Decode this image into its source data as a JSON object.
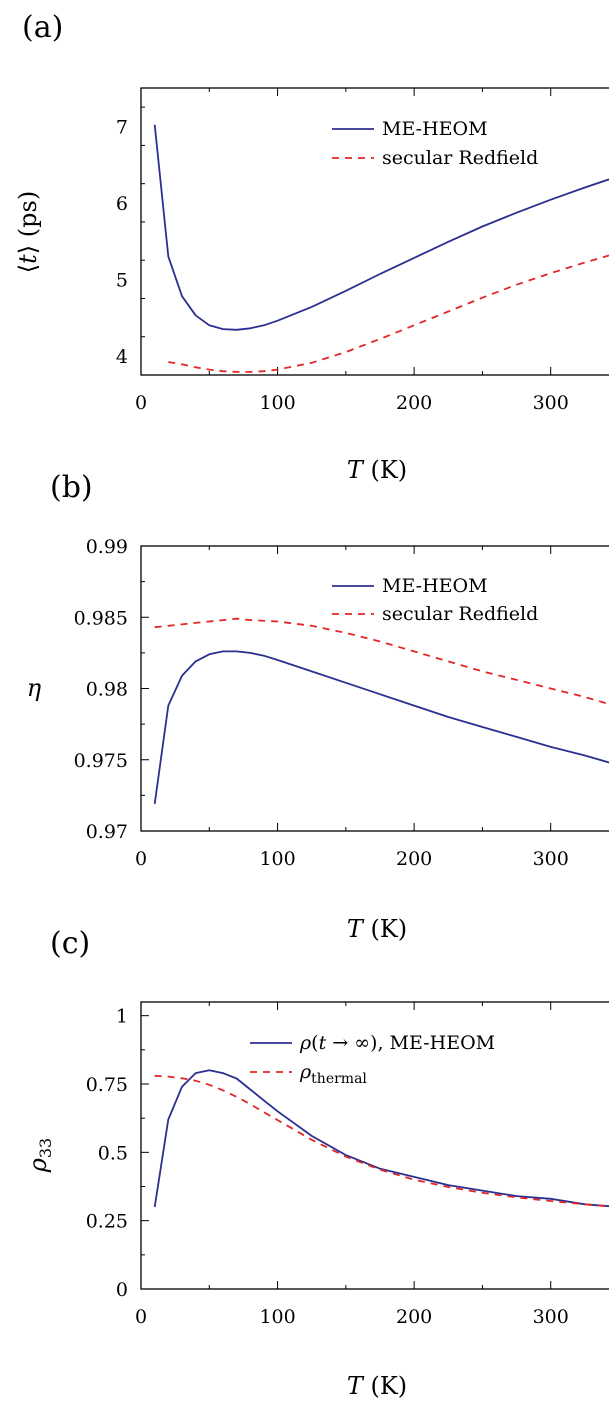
{
  "colors": {
    "heom": "#2b2f8f",
    "redfield": "#e32626"
  },
  "chart_data": [
    {
      "type": "line",
      "panel_label": "(a)",
      "xlabel": "T (K)",
      "ylabel": "⟨t⟩ (ps)",
      "xlim": [
        0,
        350
      ],
      "ylim": [
        3.75,
        7.5
      ],
      "xticks": [
        0,
        100,
        200,
        300
      ],
      "xtick_labels": [
        "0",
        "100",
        "200",
        "300"
      ],
      "yticks": [
        4,
        5,
        6,
        7
      ],
      "ytick_labels": [
        "4",
        "5",
        "6",
        "7"
      ],
      "legend_position": "top-right",
      "series": [
        {
          "name": "ME-HEOM",
          "style": "solid",
          "x": [
            10,
            20,
            30,
            40,
            50,
            60,
            70,
            80,
            90,
            100,
            125,
            150,
            175,
            200,
            225,
            250,
            275,
            300,
            325,
            350
          ],
          "y": [
            7.02,
            5.3,
            4.78,
            4.53,
            4.4,
            4.35,
            4.34,
            4.36,
            4.4,
            4.46,
            4.64,
            4.85,
            5.07,
            5.28,
            5.49,
            5.69,
            5.87,
            6.04,
            6.2,
            6.35
          ]
        },
        {
          "name": "secular Redfield",
          "style": "dashed",
          "x": [
            20,
            30,
            40,
            50,
            60,
            70,
            80,
            90,
            100,
            125,
            150,
            175,
            200,
            225,
            250,
            275,
            300,
            325,
            350
          ],
          "y": [
            3.92,
            3.89,
            3.85,
            3.82,
            3.8,
            3.79,
            3.79,
            3.8,
            3.82,
            3.91,
            4.05,
            4.22,
            4.4,
            4.58,
            4.76,
            4.93,
            5.08,
            5.22,
            5.35
          ]
        }
      ]
    },
    {
      "type": "line",
      "panel_label": "(b)",
      "xlabel": "T (K)",
      "ylabel": "η",
      "xlim": [
        0,
        350
      ],
      "ylim": [
        0.97,
        0.99
      ],
      "xticks": [
        0,
        100,
        200,
        300
      ],
      "xtick_labels": [
        "0",
        "100",
        "200",
        "300"
      ],
      "yticks": [
        0.97,
        0.975,
        0.98,
        0.985,
        0.99
      ],
      "ytick_labels": [
        "0.97",
        "0.975",
        "0.98",
        "0.985",
        "0.99"
      ],
      "legend_position": "top-right",
      "series": [
        {
          "name": "ME-HEOM",
          "style": "solid",
          "x": [
            10,
            20,
            30,
            40,
            50,
            60,
            70,
            80,
            90,
            100,
            125,
            150,
            175,
            200,
            225,
            250,
            275,
            300,
            325,
            350
          ],
          "y": [
            0.9719,
            0.9788,
            0.9809,
            0.9819,
            0.9824,
            0.9826,
            0.9826,
            0.9825,
            0.9823,
            0.982,
            0.9812,
            0.9804,
            0.9796,
            0.9788,
            0.978,
            0.9773,
            0.9766,
            0.9759,
            0.9753,
            0.9746
          ]
        },
        {
          "name": "secular Redfield",
          "style": "dashed",
          "x": [
            10,
            20,
            40,
            60,
            70,
            80,
            100,
            125,
            150,
            175,
            200,
            225,
            250,
            275,
            300,
            325,
            350
          ],
          "y": [
            0.9843,
            0.9844,
            0.9846,
            0.9848,
            0.9849,
            0.9848,
            0.9847,
            0.9844,
            0.9839,
            0.9833,
            0.9826,
            0.9819,
            0.9812,
            0.9806,
            0.98,
            0.9794,
            0.9787
          ]
        }
      ]
    },
    {
      "type": "line",
      "panel_label": "(c)",
      "xlabel": "T (K)",
      "ylabel": "ρ33",
      "xlim": [
        0,
        350
      ],
      "ylim": [
        0,
        1.05
      ],
      "xticks": [
        0,
        100,
        200,
        300
      ],
      "xtick_labels": [
        "0",
        "100",
        "200",
        "300"
      ],
      "yticks": [
        0,
        0.25,
        0.5,
        0.75,
        1
      ],
      "ytick_labels": [
        "0",
        "0.25",
        "0.5",
        "0.75",
        "1"
      ],
      "legend_position": "top-right",
      "series": [
        {
          "name": "ρ(t → ∞), ME-HEOM",
          "style": "solid",
          "x": [
            10,
            20,
            30,
            40,
            50,
            60,
            70,
            80,
            90,
            100,
            125,
            150,
            175,
            200,
            225,
            250,
            275,
            300,
            325,
            350
          ],
          "y": [
            0.3,
            0.62,
            0.74,
            0.79,
            0.8,
            0.79,
            0.77,
            0.73,
            0.69,
            0.65,
            0.56,
            0.49,
            0.44,
            0.41,
            0.38,
            0.36,
            0.34,
            0.33,
            0.31,
            0.3
          ]
        },
        {
          "name": "ρthermal",
          "style": "dashed",
          "x": [
            10,
            20,
            30,
            40,
            50,
            60,
            70,
            80,
            90,
            100,
            125,
            150,
            175,
            200,
            225,
            250,
            275,
            300,
            325,
            350
          ],
          "y": [
            0.78,
            0.777,
            0.771,
            0.762,
            0.747,
            0.727,
            0.703,
            0.676,
            0.647,
            0.618,
            0.546,
            0.484,
            0.437,
            0.4,
            0.373,
            0.352,
            0.335,
            0.322,
            0.31,
            0.299
          ]
        }
      ]
    }
  ]
}
